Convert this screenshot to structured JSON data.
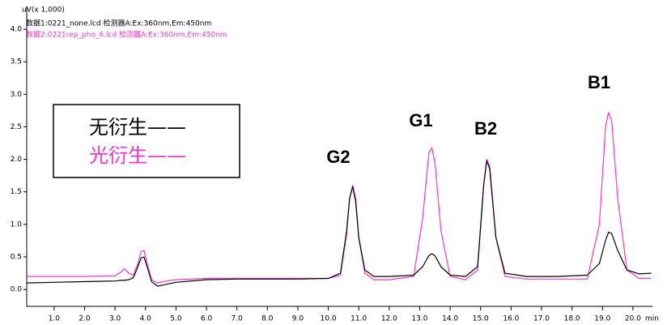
{
  "chart_data": {
    "type": "line",
    "y_label": "uV(x 1,000)",
    "x_label": "min",
    "subtitles": [
      "数据1:0221_none.lcd 检测器A:Ex:360nm,Em:450nm",
      "数据2:0221rep_pho_6.lcd 检测器A:Ex:360nm,Em:450nm"
    ],
    "annotations": [
      "G2",
      "G1",
      "B2",
      "B1"
    ],
    "x": [
      0.1,
      1.0,
      2.0,
      3.0,
      3.2,
      3.3,
      3.45,
      3.6,
      3.75,
      3.85,
      3.95,
      4.05,
      4.2,
      4.4,
      4.7,
      5.0,
      6.0,
      7.0,
      8.0,
      9.0,
      10.0,
      10.4,
      10.6,
      10.7,
      10.8,
      10.9,
      11.0,
      11.2,
      11.5,
      12.0,
      12.8,
      13.1,
      13.3,
      13.4,
      13.5,
      13.7,
      14.0,
      14.5,
      14.9,
      15.1,
      15.2,
      15.3,
      15.5,
      15.8,
      16.5,
      17.5,
      18.5,
      18.9,
      19.1,
      19.2,
      19.3,
      19.5,
      19.8,
      20.2,
      20.6
    ],
    "series": [
      {
        "name": "无衍生——",
        "color": "#000000",
        "values": [
          0.1,
          0.11,
          0.12,
          0.13,
          0.14,
          0.14,
          0.15,
          0.18,
          0.35,
          0.48,
          0.5,
          0.35,
          0.12,
          0.05,
          0.08,
          0.11,
          0.15,
          0.16,
          0.16,
          0.16,
          0.17,
          0.25,
          0.9,
          1.4,
          1.58,
          1.35,
          0.8,
          0.3,
          0.2,
          0.2,
          0.22,
          0.35,
          0.52,
          0.55,
          0.52,
          0.35,
          0.22,
          0.2,
          0.35,
          1.6,
          1.98,
          1.85,
          0.8,
          0.25,
          0.2,
          0.2,
          0.22,
          0.4,
          0.75,
          0.88,
          0.86,
          0.6,
          0.3,
          0.24,
          0.25
        ]
      },
      {
        "name": "光衍生——",
        "color": "#ff33cc",
        "values": [
          0.2,
          0.2,
          0.2,
          0.21,
          0.27,
          0.32,
          0.25,
          0.22,
          0.4,
          0.58,
          0.6,
          0.4,
          0.15,
          0.1,
          0.13,
          0.15,
          0.17,
          0.17,
          0.17,
          0.17,
          0.17,
          0.22,
          0.85,
          1.4,
          1.6,
          1.4,
          0.8,
          0.25,
          0.15,
          0.15,
          0.2,
          1.1,
          2.1,
          2.18,
          1.95,
          0.9,
          0.2,
          0.15,
          0.3,
          1.6,
          2.0,
          1.9,
          0.8,
          0.2,
          0.16,
          0.16,
          0.16,
          1.0,
          2.5,
          2.72,
          2.6,
          1.4,
          0.3,
          0.17,
          0.17
        ]
      }
    ],
    "xlim": [
      0.1,
      20.64
    ],
    "ylim": [
      -0.26,
      4.35
    ],
    "xticks": [
      {
        "value": 1,
        "label": "1.0"
      },
      {
        "value": 2,
        "label": "2.0"
      },
      {
        "value": 3,
        "label": "3.0"
      },
      {
        "value": 4,
        "label": "4.0"
      },
      {
        "value": 5,
        "label": "5.0"
      },
      {
        "value": 6,
        "label": "6.0"
      },
      {
        "value": 7,
        "label": "7.0"
      },
      {
        "value": 8,
        "label": "8.0"
      },
      {
        "value": 9,
        "label": "9.0"
      },
      {
        "value": 10,
        "label": "10.0"
      },
      {
        "value": 11,
        "label": "11.0"
      },
      {
        "value": 12,
        "label": "12.0"
      },
      {
        "value": 13,
        "label": "13.0"
      },
      {
        "value": 14,
        "label": "14.0"
      },
      {
        "value": 15,
        "label": "15.0"
      },
      {
        "value": 16,
        "label": "16.0"
      },
      {
        "value": 17,
        "label": "17.0"
      },
      {
        "value": 18,
        "label": "18.0"
      },
      {
        "value": 19,
        "label": "19.0"
      },
      {
        "value": 20,
        "label": "20.0"
      }
    ],
    "yticks": [
      {
        "value": 0,
        "label": "0.0"
      },
      {
        "value": 0.5,
        "label": "0.5"
      },
      {
        "value": 1,
        "label": "1.0"
      },
      {
        "value": 1.5,
        "label": "1.5"
      },
      {
        "value": 2,
        "label": "2.0"
      },
      {
        "value": 2.5,
        "label": "2.5"
      },
      {
        "value": 3,
        "label": "3.0"
      },
      {
        "value": 3.5,
        "label": "3.5"
      },
      {
        "value": 4,
        "label": "4.0"
      }
    ],
    "grid": false
  }
}
